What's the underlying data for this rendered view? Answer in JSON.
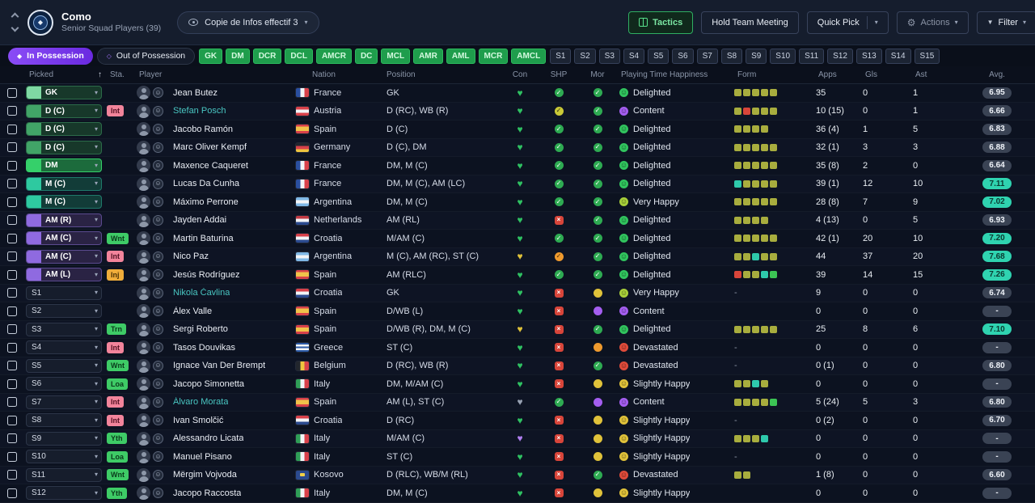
{
  "header": {
    "club": "Como",
    "subtitle": "Senior Squad Players (39)",
    "view_dropdown": "Copie de Infos effectif 3",
    "tactics": "Tactics",
    "hold_team_meeting": "Hold Team Meeting",
    "quick_pick": "Quick Pick",
    "actions": "Actions",
    "filter": "Filter"
  },
  "possession": {
    "in_label": "In Possession",
    "out_label": "Out of Possession"
  },
  "filter_bar": {
    "position_filters": [
      "GK",
      "DM",
      "DCR",
      "DCL",
      "AMCR",
      "DC",
      "MCL",
      "AMR",
      "AML",
      "MCR",
      "AMCL"
    ],
    "slot_filters": [
      "S1",
      "S2",
      "S3",
      "S4",
      "S5",
      "S6",
      "S7",
      "S8",
      "S9",
      "S10",
      "S11",
      "S12",
      "S13",
      "S14",
      "S15"
    ]
  },
  "icons": {
    "chevron_down": "▾",
    "sort_ascending": "↑",
    "heart": "♥",
    "check": "✓",
    "cross": "×",
    "gear": "⚙",
    "smiley": "☺",
    "in_possession_icon": "◆",
    "out_possession_icon": "◇",
    "funnel": "▼"
  },
  "colors": {
    "accent_green": "#2eab52",
    "rating_teal": "#2fd3b0",
    "possession_purple": "#7d3bf0",
    "badge_pink": "#f2849b",
    "badge_amber": "#f0ad3a",
    "devastated_red": "#df4b3a"
  },
  "table": {
    "columns": [
      "Picked",
      "Sta.",
      "Player",
      "Nation",
      "Position",
      "Con",
      "SHP",
      "Mor",
      "Playing Time Happiness",
      "Form",
      "Apps",
      "Gls",
      "Ast",
      "Avg."
    ],
    "rows": [
      {
        "picked": "GK",
        "ptype": "gk",
        "sta": null,
        "name": "Jean Butez",
        "hl": false,
        "flag": "fr",
        "nation": "France",
        "pos": "GK",
        "con": "green",
        "shp": "ck-green",
        "mor": "ck-green",
        "pth": "Delighted",
        "pthc": "delighted",
        "form": [
          "o",
          "o",
          "o",
          "o",
          "o"
        ],
        "apps": "35",
        "gls": "0",
        "ast": "1",
        "avg": "6.95",
        "avgt": "dark"
      },
      {
        "picked": "D (C)",
        "ptype": "d",
        "sta": {
          "label": "Int",
          "type": "pink"
        },
        "name": "Stefan Posch",
        "hl": true,
        "flag": "at",
        "nation": "Austria",
        "pos": "D (RC), WB (R)",
        "con": "green",
        "shp": "ck-yellow",
        "mor": "ck-green",
        "pth": "Content",
        "pthc": "content",
        "form": [
          "o",
          "r",
          "o",
          "o",
          "o"
        ],
        "apps": "10 (15)",
        "gls": "0",
        "ast": "1",
        "avg": "6.66",
        "avgt": "dark"
      },
      {
        "picked": "D (C)",
        "ptype": "d",
        "sta": null,
        "name": "Jacobo Ramón",
        "hl": false,
        "flag": "es",
        "nation": "Spain",
        "pos": "D (C)",
        "con": "green",
        "shp": "ck-green",
        "mor": "ck-green",
        "pth": "Delighted",
        "pthc": "delighted",
        "form": [
          "o",
          "o",
          "o",
          "o"
        ],
        "apps": "36 (4)",
        "gls": "1",
        "ast": "5",
        "avg": "6.83",
        "avgt": "dark"
      },
      {
        "picked": "D (C)",
        "ptype": "d",
        "sta": null,
        "name": "Marc Oliver Kempf",
        "hl": false,
        "flag": "de",
        "nation": "Germany",
        "pos": "D (C), DM",
        "con": "green",
        "shp": "ck-green",
        "mor": "ck-green",
        "pth": "Delighted",
        "pthc": "delighted",
        "form": [
          "o",
          "o",
          "o",
          "o",
          "o"
        ],
        "apps": "32 (1)",
        "gls": "3",
        "ast": "3",
        "avg": "6.88",
        "avgt": "dark"
      },
      {
        "picked": "DM",
        "ptype": "dm",
        "sta": null,
        "name": "Maxence Caqueret",
        "hl": false,
        "flag": "fr",
        "nation": "France",
        "pos": "DM, M (C)",
        "con": "green",
        "shp": "ck-green",
        "mor": "ck-green",
        "pth": "Delighted",
        "pthc": "delighted",
        "form": [
          "o",
          "o",
          "o",
          "o",
          "o"
        ],
        "apps": "35 (8)",
        "gls": "2",
        "ast": "0",
        "avg": "6.64",
        "avgt": "dark"
      },
      {
        "picked": "M (C)",
        "ptype": "m",
        "sta": null,
        "name": "Lucas Da Cunha",
        "hl": false,
        "flag": "fr",
        "nation": "France",
        "pos": "DM, M (C), AM (LC)",
        "con": "green",
        "shp": "ck-green",
        "mor": "ck-green",
        "pth": "Delighted",
        "pthc": "delighted",
        "form": [
          "t",
          "o",
          "o",
          "o",
          "o"
        ],
        "apps": "39 (1)",
        "gls": "12",
        "ast": "10",
        "avg": "7.11",
        "avgt": "teal"
      },
      {
        "picked": "M (C)",
        "ptype": "m",
        "sta": null,
        "name": "Máximo Perrone",
        "hl": false,
        "flag": "ar",
        "nation": "Argentina",
        "pos": "DM, M (C)",
        "con": "green",
        "shp": "ck-green",
        "mor": "ck-green",
        "pth": "Very Happy",
        "pthc": "veryhappy",
        "form": [
          "o",
          "o",
          "o",
          "o",
          "o"
        ],
        "apps": "28 (8)",
        "gls": "7",
        "ast": "9",
        "avg": "7.02",
        "avgt": "teal"
      },
      {
        "picked": "AM (R)",
        "ptype": "am",
        "sta": null,
        "name": "Jayden Addai",
        "hl": false,
        "flag": "nl",
        "nation": "Netherlands",
        "pos": "AM (RL)",
        "con": "green",
        "shp": "x-red",
        "mor": "ck-green",
        "pth": "Delighted",
        "pthc": "delighted",
        "form": [
          "o",
          "o",
          "o",
          "o"
        ],
        "apps": "4 (13)",
        "gls": "0",
        "ast": "5",
        "avg": "6.93",
        "avgt": "dark"
      },
      {
        "picked": "AM (C)",
        "ptype": "am",
        "sta": {
          "label": "Wnt",
          "type": "green"
        },
        "name": "Martin Baturina",
        "hl": false,
        "flag": "hr",
        "nation": "Croatia",
        "pos": "M/AM (C)",
        "con": "green",
        "shp": "ck-green",
        "mor": "ck-green",
        "pth": "Delighted",
        "pthc": "delighted",
        "form": [
          "o",
          "o",
          "o",
          "o",
          "o"
        ],
        "apps": "42 (1)",
        "gls": "20",
        "ast": "10",
        "avg": "7.20",
        "avgt": "teal"
      },
      {
        "picked": "AM (C)",
        "ptype": "am",
        "sta": {
          "label": "Int",
          "type": "pink"
        },
        "name": "Nico Paz",
        "hl": false,
        "flag": "ar",
        "nation": "Argentina",
        "pos": "M (C), AM (RC), ST (C)",
        "con": "yellow",
        "shp": "ck-orange",
        "mor": "ck-green",
        "pth": "Delighted",
        "pthc": "delighted",
        "form": [
          "o",
          "o",
          "t",
          "o",
          "o"
        ],
        "apps": "44",
        "gls": "37",
        "ast": "20",
        "avg": "7.68",
        "avgt": "teal"
      },
      {
        "picked": "AM (L)",
        "ptype": "am",
        "sta": {
          "label": "Inj",
          "type": "amber"
        },
        "name": "Jesús Rodríguez",
        "hl": false,
        "flag": "es",
        "nation": "Spain",
        "pos": "AM (RLC)",
        "con": "green",
        "shp": "ck-green",
        "mor": "ck-green",
        "pth": "Delighted",
        "pthc": "delighted",
        "form": [
          "r",
          "o",
          "o",
          "t",
          "g"
        ],
        "apps": "39",
        "gls": "14",
        "ast": "15",
        "avg": "7.26",
        "avgt": "teal"
      },
      {
        "picked": "S1",
        "ptype": "sub",
        "sta": null,
        "name": "Nikola Čavlina",
        "hl": true,
        "flag": "hr",
        "nation": "Croatia",
        "pos": "GK",
        "con": "green",
        "shp": "x-red",
        "mor": "dot-yellow",
        "pth": "Very Happy",
        "pthc": "veryhappy",
        "form": null,
        "apps": "9",
        "gls": "0",
        "ast": "0",
        "avg": "6.74",
        "avgt": "dark"
      },
      {
        "picked": "S2",
        "ptype": "sub",
        "sta": null,
        "name": "Àlex Valle",
        "hl": false,
        "flag": "es",
        "nation": "Spain",
        "pos": "D/WB (L)",
        "con": "green",
        "shp": "x-red",
        "mor": "dot-purple",
        "pth": "Content",
        "pthc": "content",
        "form": [],
        "apps": "0",
        "gls": "0",
        "ast": "0",
        "avg": "-",
        "avgt": "dark"
      },
      {
        "picked": "S3",
        "ptype": "sub",
        "sta": {
          "label": "Trn",
          "type": "green"
        },
        "name": "Sergi Roberto",
        "hl": false,
        "flag": "es",
        "nation": "Spain",
        "pos": "D/WB (R), DM, M (C)",
        "con": "yellow",
        "shp": "x-red",
        "mor": "ck-green",
        "pth": "Delighted",
        "pthc": "delighted",
        "form": [
          "o",
          "o",
          "o",
          "o",
          "o"
        ],
        "apps": "25",
        "gls": "8",
        "ast": "6",
        "avg": "7.10",
        "avgt": "teal"
      },
      {
        "picked": "S4",
        "ptype": "sub",
        "sta": {
          "label": "Int",
          "type": "pink"
        },
        "name": "Tasos Douvikas",
        "hl": false,
        "flag": "gr",
        "nation": "Greece",
        "pos": "ST (C)",
        "con": "green",
        "shp": "x-red",
        "mor": "dot-orange",
        "pth": "Devastated",
        "pthc": "devastated",
        "form": null,
        "apps": "0",
        "gls": "0",
        "ast": "0",
        "avg": "-",
        "avgt": "dark"
      },
      {
        "picked": "S5",
        "ptype": "sub",
        "sta": {
          "label": "Wnt",
          "type": "green"
        },
        "name": "Ignace Van Der Brempt",
        "hl": false,
        "flag": "be",
        "nation": "Belgium",
        "pos": "D (RC), WB (R)",
        "con": "green",
        "shp": "x-red",
        "mor": "ck-green",
        "pth": "Devastated",
        "pthc": "devastated",
        "form": null,
        "apps": "0 (1)",
        "gls": "0",
        "ast": "0",
        "avg": "6.80",
        "avgt": "dark"
      },
      {
        "picked": "S6",
        "ptype": "sub",
        "sta": {
          "label": "Loa",
          "type": "green"
        },
        "name": "Jacopo Simonetta",
        "hl": false,
        "flag": "it",
        "nation": "Italy",
        "pos": "DM, M/AM (C)",
        "con": "green",
        "shp": "x-red",
        "mor": "dot-yellow",
        "pth": "Slightly Happy",
        "pthc": "slight",
        "form": [
          "o",
          "o",
          "t",
          "o"
        ],
        "apps": "0",
        "gls": "0",
        "ast": "0",
        "avg": "-",
        "avgt": "dark"
      },
      {
        "picked": "S7",
        "ptype": "sub",
        "sta": {
          "label": "Int",
          "type": "pink"
        },
        "name": "Álvaro Morata",
        "hl": true,
        "flag": "es",
        "nation": "Spain",
        "pos": "AM (L), ST (C)",
        "con": "grey",
        "shp": "ck-green",
        "mor": "dot-purple",
        "pth": "Content",
        "pthc": "content",
        "form": [
          "o",
          "o",
          "o",
          "o",
          "g"
        ],
        "apps": "5 (24)",
        "gls": "5",
        "ast": "3",
        "avg": "6.80",
        "avgt": "dark"
      },
      {
        "picked": "S8",
        "ptype": "sub",
        "sta": {
          "label": "Int",
          "type": "pink"
        },
        "name": "Ivan Smolčić",
        "hl": false,
        "flag": "hr",
        "nation": "Croatia",
        "pos": "D (RC)",
        "con": "green",
        "shp": "x-red",
        "mor": "dot-yellow",
        "pth": "Slightly Happy",
        "pthc": "slight",
        "form": null,
        "apps": "0 (2)",
        "gls": "0",
        "ast": "0",
        "avg": "6.70",
        "avgt": "dark"
      },
      {
        "picked": "S9",
        "ptype": "sub",
        "sta": {
          "label": "Yth",
          "type": "green"
        },
        "name": "Alessandro Licata",
        "hl": false,
        "flag": "it",
        "nation": "Italy",
        "pos": "M/AM (C)",
        "con": "purple",
        "shp": "x-red",
        "mor": "dot-yellow",
        "pth": "Slightly Happy",
        "pthc": "slight",
        "form": [
          "o",
          "o",
          "o",
          "t"
        ],
        "apps": "0",
        "gls": "0",
        "ast": "0",
        "avg": "-",
        "avgt": "dark"
      },
      {
        "picked": "S10",
        "ptype": "sub",
        "sta": {
          "label": "Loa",
          "type": "green"
        },
        "name": "Manuel Pisano",
        "hl": false,
        "flag": "it",
        "nation": "Italy",
        "pos": "ST (C)",
        "con": "green",
        "shp": "x-red",
        "mor": "dot-yellow",
        "pth": "Slightly Happy",
        "pthc": "slight",
        "form": null,
        "apps": "0",
        "gls": "0",
        "ast": "0",
        "avg": "-",
        "avgt": "dark"
      },
      {
        "picked": "S11",
        "ptype": "sub",
        "sta": {
          "label": "Wnt",
          "type": "green"
        },
        "name": "Mërgim Vojvoda",
        "hl": false,
        "flag": "xk",
        "nation": "Kosovo",
        "pos": "D (RLC), WB/M (RL)",
        "con": "green",
        "shp": "x-red",
        "mor": "ck-green",
        "pth": "Devastated",
        "pthc": "devastated",
        "form": [
          "o",
          "o"
        ],
        "apps": "1 (8)",
        "gls": "0",
        "ast": "0",
        "avg": "6.60",
        "avgt": "dark"
      },
      {
        "picked": "S12",
        "ptype": "sub",
        "sta": {
          "label": "Yth",
          "type": "green"
        },
        "name": "Jacopo Raccosta",
        "hl": false,
        "flag": "it",
        "nation": "Italy",
        "pos": "DM, M (C)",
        "con": "green",
        "shp": "x-red",
        "mor": "dot-yellow",
        "pth": "Slightly Happy",
        "pthc": "slight",
        "form": [],
        "apps": "0",
        "gls": "0",
        "ast": "0",
        "avg": "-",
        "avgt": "dark"
      }
    ]
  }
}
